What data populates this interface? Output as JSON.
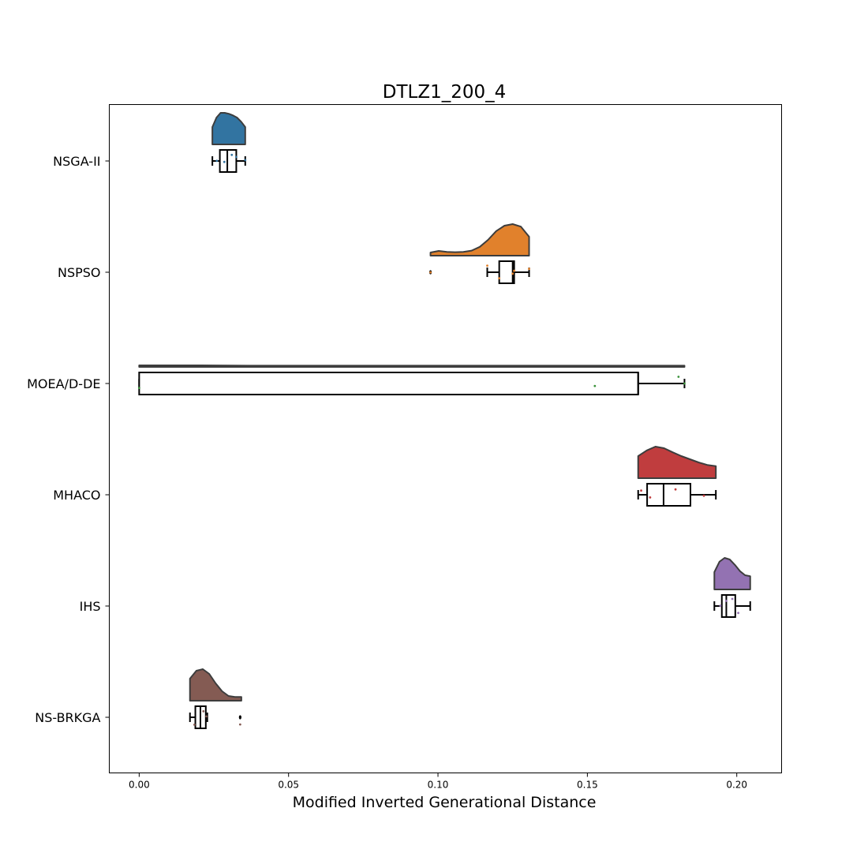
{
  "chart_data": {
    "type": "raincloud",
    "title": "DTLZ1_200_4",
    "xlabel": "Modified Inverted Generational Distance",
    "ylabel": "",
    "xlim": [
      -0.01,
      0.215
    ],
    "xticks": [
      0.0,
      0.05,
      0.1,
      0.15,
      0.2
    ],
    "xtick_labels": [
      "0.00",
      "0.05",
      "0.10",
      "0.15",
      "0.20"
    ],
    "grid": false,
    "series": [
      {
        "name": "NSGA-II",
        "color": "#3274a1",
        "box": {
          "whisker_low": 0.0245,
          "q1": 0.027,
          "median": 0.0295,
          "q3": 0.0325,
          "whisker_high": 0.0355
        },
        "fliers": [],
        "density_range": [
          0.0245,
          0.0355
        ],
        "density": [
          0.55,
          0.85,
          1.0,
          1.0,
          0.97,
          0.92,
          0.85,
          0.72,
          0.55
        ],
        "points": [
          0.026,
          0.0285,
          0.031,
          0.0325,
          0.0355
        ]
      },
      {
        "name": "NSPSO",
        "color": "#e1812c",
        "box": {
          "whisker_low": 0.1165,
          "q1": 0.1205,
          "median": 0.125,
          "q3": 0.1255,
          "whisker_high": 0.1305
        },
        "fliers": [
          0.0975
        ],
        "density_range": [
          0.0975,
          0.1305
        ],
        "density": [
          0.1,
          0.15,
          0.12,
          0.11,
          0.12,
          0.16,
          0.28,
          0.5,
          0.78,
          0.95,
          1.0,
          0.92,
          0.6
        ],
        "points": [
          0.0975,
          0.1165,
          0.1205,
          0.125,
          0.1255,
          0.1305
        ]
      },
      {
        "name": "MOEA/D-DE",
        "color": "#3a923a",
        "box": {
          "whisker_low": 0.0,
          "q1": 0.0,
          "median": 0.167,
          "q3": 0.167,
          "whisker_high": 0.1825
        },
        "fliers": [],
        "density_range": [
          0.0,
          0.1825
        ],
        "density": [
          0.05,
          0.05,
          0.04,
          0.04,
          0.04,
          0.04,
          0.04,
          0.04,
          0.04,
          0.04,
          0.04
        ],
        "points": [
          0.0,
          0.1525,
          0.1805,
          0.1825
        ]
      },
      {
        "name": "MHACO",
        "color": "#c03d3e",
        "box": {
          "whisker_low": 0.167,
          "q1": 0.17,
          "median": 0.1755,
          "q3": 0.1845,
          "whisker_high": 0.193
        },
        "fliers": [],
        "density_range": [
          0.167,
          0.193
        ],
        "density": [
          0.7,
          0.88,
          1.0,
          0.95,
          0.82,
          0.7,
          0.6,
          0.5,
          0.42,
          0.38
        ],
        "points": [
          0.168,
          0.171,
          0.1795,
          0.189
        ]
      },
      {
        "name": "IHS",
        "color": "#9372b2",
        "box": {
          "whisker_low": 0.1925,
          "q1": 0.195,
          "median": 0.1965,
          "q3": 0.1995,
          "whisker_high": 0.2045
        },
        "fliers": [],
        "density_range": [
          0.1925,
          0.2045
        ],
        "density": [
          0.55,
          0.88,
          1.0,
          0.95,
          0.78,
          0.58,
          0.45,
          0.42
        ],
        "points": [
          0.1945,
          0.1965,
          0.1985,
          0.2005
        ]
      },
      {
        "name": "NS-BRKGA",
        "color": "#845b53",
        "box": {
          "whisker_low": 0.017,
          "q1": 0.0188,
          "median": 0.0205,
          "q3": 0.0223,
          "whisker_high": 0.0228
        },
        "fliers": [
          0.0338
        ],
        "density_range": [
          0.017,
          0.0342
        ],
        "density": [
          0.7,
          0.95,
          1.0,
          0.85,
          0.55,
          0.3,
          0.15,
          0.12,
          0.12
        ],
        "points": [
          0.0185,
          0.0215,
          0.0225,
          0.0338
        ]
      }
    ]
  }
}
